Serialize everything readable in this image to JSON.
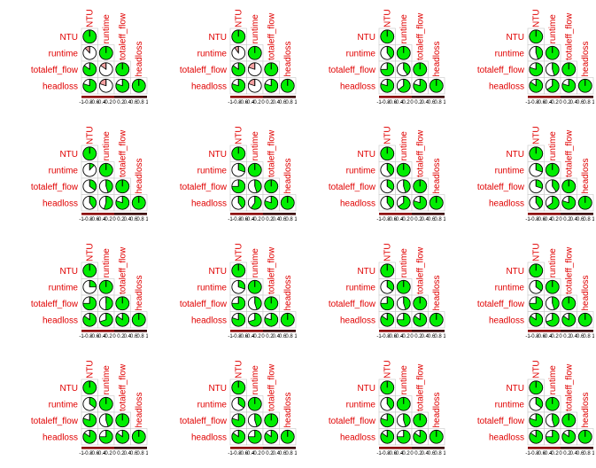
{
  "chart_data": {
    "type": "correlogram-grid",
    "variables": [
      "NTU",
      "runtime",
      "totaleff_flow",
      "headloss"
    ],
    "scale_ticks": [
      "-1",
      "-0.8",
      "-0.6",
      "-0.4",
      "-0.2",
      "0",
      "0.2",
      "0.4",
      "0.6",
      "0.8",
      "1"
    ],
    "positive_color": "#00ee00",
    "negative_color": "#f4a0a0",
    "label_color": "#e00000",
    "panels": [
      {
        "pairs": {
          "runtime|NTU": -0.12,
          "totaleff_flow|NTU": 0.85,
          "totaleff_flow|runtime": -0.15,
          "headloss|NTU": 0.8,
          "headloss|runtime": -0.2,
          "headloss|totaleff_flow": 0.8
        }
      },
      {
        "pairs": {
          "runtime|NTU": -0.1,
          "totaleff_flow|NTU": 0.85,
          "totaleff_flow|runtime": -0.2,
          "headloss|NTU": 0.8,
          "headloss|runtime": -0.2,
          "headloss|totaleff_flow": 0.8
        }
      },
      {
        "pairs": {
          "runtime|NTU": 0.4,
          "totaleff_flow|NTU": 0.75,
          "totaleff_flow|runtime": 0.4,
          "headloss|NTU": 0.8,
          "headloss|runtime": 0.65,
          "headloss|totaleff_flow": 0.8
        }
      },
      {
        "pairs": {
          "runtime|NTU": 0.45,
          "totaleff_flow|NTU": 0.8,
          "totaleff_flow|runtime": 0.45,
          "headloss|NTU": 0.85,
          "headloss|runtime": 0.65,
          "headloss|totaleff_flow": 0.8
        }
      },
      {
        "pairs": {
          "runtime|NTU": 0.12,
          "totaleff_flow|NTU": 0.35,
          "totaleff_flow|runtime": 0.45,
          "headloss|NTU": 0.4,
          "headloss|runtime": 0.55,
          "headloss|totaleff_flow": 0.8
        }
      },
      {
        "pairs": {
          "runtime|NTU": 0.3,
          "totaleff_flow|NTU": 0.75,
          "totaleff_flow|runtime": 0.45,
          "headloss|NTU": 0.4,
          "headloss|runtime": 0.6,
          "headloss|totaleff_flow": 0.8
        }
      },
      {
        "pairs": {
          "runtime|NTU": 0.4,
          "totaleff_flow|NTU": 0.35,
          "totaleff_flow|runtime": 0.45,
          "headloss|NTU": 0.4,
          "headloss|runtime": 0.65,
          "headloss|totaleff_flow": 0.8
        }
      },
      {
        "pairs": {
          "runtime|NTU": 0.3,
          "totaleff_flow|NTU": 0.3,
          "totaleff_flow|runtime": 0.4,
          "headloss|NTU": 0.4,
          "headloss|runtime": 0.65,
          "headloss|totaleff_flow": 0.8
        }
      },
      {
        "pairs": {
          "runtime|NTU": 0.25,
          "totaleff_flow|NTU": 0.75,
          "totaleff_flow|runtime": 0.5,
          "headloss|NTU": 0.85,
          "headloss|runtime": 0.7,
          "headloss|totaleff_flow": 0.85
        }
      },
      {
        "pairs": {
          "runtime|NTU": 0.3,
          "totaleff_flow|NTU": 0.75,
          "totaleff_flow|runtime": 0.45,
          "headloss|NTU": 0.8,
          "headloss|runtime": 0.7,
          "headloss|totaleff_flow": 0.8
        }
      },
      {
        "pairs": {
          "runtime|NTU": 0.35,
          "totaleff_flow|NTU": 0.75,
          "totaleff_flow|runtime": 0.45,
          "headloss|NTU": 0.85,
          "headloss|runtime": 0.75,
          "headloss|totaleff_flow": 0.85
        }
      },
      {
        "pairs": {
          "runtime|NTU": 0.35,
          "totaleff_flow|NTU": 0.75,
          "totaleff_flow|runtime": 0.45,
          "headloss|NTU": 0.85,
          "headloss|runtime": 0.7,
          "headloss|totaleff_flow": 0.85
        }
      },
      {
        "pairs": {
          "runtime|NTU": 0.35,
          "totaleff_flow|NTU": 0.8,
          "totaleff_flow|runtime": 0.45,
          "headloss|NTU": 0.85,
          "headloss|runtime": 0.75,
          "headloss|totaleff_flow": 0.85
        }
      },
      {
        "pairs": {
          "runtime|NTU": 0.35,
          "totaleff_flow|NTU": 0.8,
          "totaleff_flow|runtime": 0.45,
          "headloss|NTU": 0.85,
          "headloss|runtime": 0.75,
          "headloss|totaleff_flow": 0.85
        }
      },
      {
        "pairs": {
          "runtime|NTU": 0.4,
          "totaleff_flow|NTU": 0.8,
          "totaleff_flow|runtime": 0.45,
          "headloss|NTU": 0.85,
          "headloss|runtime": 0.75,
          "headloss|totaleff_flow": 0.85
        }
      },
      {
        "pairs": {
          "runtime|NTU": 0.35,
          "totaleff_flow|NTU": 0.8,
          "totaleff_flow|runtime": 0.45,
          "headloss|NTU": 0.85,
          "headloss|runtime": 0.75,
          "headloss|totaleff_flow": 0.85
        }
      }
    ]
  }
}
